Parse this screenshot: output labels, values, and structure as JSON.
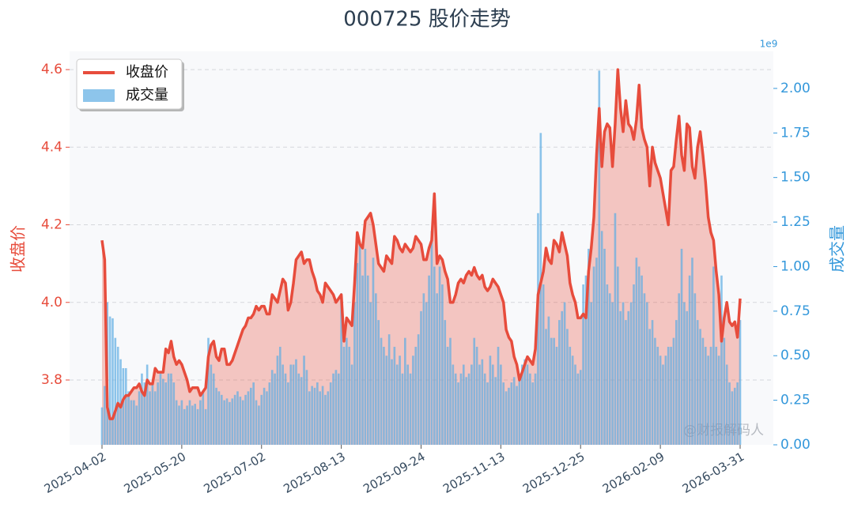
{
  "chart_data": {
    "type": "line",
    "title": "000725 股价走势",
    "ylabel": "收盘价",
    "y2label": "成交量",
    "y2_offset_label": "1e9",
    "watermark": "@财报解码人",
    "legend": "upper left",
    "grid": true,
    "categories": [
      "2025-04-02",
      null,
      null,
      null,
      null,
      null,
      null,
      null,
      null,
      null,
      null,
      null,
      null,
      null,
      null,
      null,
      null,
      null,
      null,
      null,
      null,
      null,
      null,
      null,
      null,
      null,
      null,
      null,
      null,
      null,
      "2025-05-20",
      null,
      null,
      null,
      null,
      null,
      null,
      null,
      null,
      null,
      null,
      null,
      null,
      null,
      null,
      null,
      null,
      null,
      null,
      null,
      null,
      null,
      null,
      null,
      null,
      null,
      null,
      null,
      null,
      null,
      "2025-07-02",
      null,
      null,
      null,
      null,
      null,
      null,
      null,
      null,
      null,
      null,
      null,
      null,
      null,
      null,
      null,
      null,
      null,
      null,
      null,
      null,
      null,
      null,
      null,
      null,
      null,
      null,
      null,
      null,
      null,
      "2025-08-13",
      null,
      null,
      null,
      null,
      null,
      null,
      null,
      null,
      null,
      null,
      null,
      null,
      null,
      null,
      null,
      null,
      null,
      null,
      null,
      null,
      null,
      null,
      null,
      null,
      null,
      null,
      null,
      null,
      null,
      "2025-09-24",
      null,
      null,
      null,
      null,
      null,
      null,
      null,
      null,
      null,
      null,
      null,
      null,
      null,
      null,
      null,
      null,
      null,
      null,
      null,
      null,
      null,
      null,
      null,
      null,
      null,
      null,
      null,
      null,
      null,
      "2025-11-13",
      null,
      null,
      null,
      null,
      null,
      null,
      null,
      null,
      null,
      null,
      null,
      null,
      null,
      null,
      null,
      null,
      null,
      null,
      null,
      null,
      null,
      null,
      null,
      null,
      null,
      null,
      null,
      null,
      null,
      "2025-12-25",
      null,
      null,
      null,
      null,
      null,
      null,
      null,
      null,
      null,
      null,
      null,
      null,
      null,
      null,
      null,
      null,
      null,
      null,
      null,
      null,
      null,
      null,
      null,
      null,
      null,
      null,
      null,
      null,
      null,
      "2026-02-09",
      null,
      null,
      null,
      null,
      null,
      null,
      null,
      null,
      null,
      null,
      null,
      null,
      null,
      null,
      null,
      null,
      null,
      null,
      null,
      null,
      null,
      null,
      null,
      null,
      null,
      null,
      null,
      null,
      null,
      "2026-03-31"
    ],
    "series": [
      {
        "name": "收盘价",
        "type": "area",
        "color": "#e74c3c",
        "values": [
          4.16,
          4.11,
          3.73,
          3.7,
          3.7,
          3.72,
          3.74,
          3.73,
          3.75,
          3.76,
          3.76,
          3.77,
          3.78,
          3.78,
          3.79,
          3.77,
          3.76,
          3.8,
          3.79,
          3.79,
          3.83,
          3.82,
          3.82,
          3.82,
          3.88,
          3.87,
          3.9,
          3.86,
          3.84,
          3.85,
          3.84,
          3.82,
          3.8,
          3.77,
          3.78,
          3.78,
          3.78,
          3.76,
          3.77,
          3.78,
          3.86,
          3.89,
          3.9,
          3.86,
          3.85,
          3.88,
          3.88,
          3.84,
          3.84,
          3.85,
          3.87,
          3.89,
          3.91,
          3.93,
          3.94,
          3.96,
          3.96,
          3.97,
          3.99,
          3.98,
          3.99,
          3.99,
          3.97,
          3.97,
          4.02,
          4.01,
          4.0,
          4.03,
          4.06,
          4.05,
          3.98,
          4.0,
          4.05,
          4.11,
          4.12,
          4.13,
          4.1,
          4.11,
          4.11,
          4.08,
          4.06,
          4.03,
          4.02,
          4.0,
          4.05,
          4.04,
          4.03,
          4.02,
          4.0,
          4.01,
          4.02,
          3.9,
          3.96,
          3.95,
          3.94,
          4.05,
          4.18,
          4.15,
          4.14,
          4.21,
          4.22,
          4.23,
          4.2,
          4.15,
          4.1,
          4.09,
          4.08,
          4.12,
          4.11,
          4.1,
          4.17,
          4.16,
          4.14,
          4.13,
          4.15,
          4.14,
          4.13,
          4.14,
          4.17,
          4.16,
          4.15,
          4.11,
          4.11,
          4.14,
          4.16,
          4.28,
          4.1,
          4.12,
          4.11,
          4.08,
          4.06,
          4.0,
          4.0,
          4.02,
          4.05,
          4.06,
          4.05,
          4.07,
          4.08,
          4.07,
          4.09,
          4.07,
          4.06,
          4.07,
          4.04,
          4.03,
          4.04,
          4.06,
          4.05,
          4.04,
          4.02,
          4.0,
          3.93,
          3.91,
          3.9,
          3.86,
          3.84,
          3.8,
          3.82,
          3.84,
          3.86,
          3.85,
          3.84,
          3.88,
          4.02,
          4.05,
          4.08,
          4.14,
          4.11,
          4.1,
          4.16,
          4.15,
          4.13,
          4.18,
          4.15,
          4.12,
          4.05,
          4.02,
          4.0,
          3.96,
          3.96,
          3.97,
          3.96,
          4.08,
          4.14,
          4.22,
          4.38,
          4.5,
          4.35,
          4.44,
          4.46,
          4.45,
          4.35,
          4.46,
          4.6,
          4.5,
          4.44,
          4.52,
          4.46,
          4.45,
          4.42,
          4.47,
          4.56,
          4.45,
          4.42,
          4.4,
          4.3,
          4.4,
          4.36,
          4.34,
          4.32,
          4.28,
          4.24,
          4.2,
          4.34,
          4.35,
          4.42,
          4.48,
          4.38,
          4.34,
          4.46,
          4.45,
          4.35,
          4.32,
          4.4,
          4.44,
          4.38,
          4.31,
          4.22,
          4.18,
          4.16,
          4.08,
          4.02,
          3.9,
          3.96,
          4.0,
          3.95,
          3.94,
          3.95,
          3.91,
          4.01
        ]
      },
      {
        "name": "成交量",
        "type": "bar",
        "axis": "y2",
        "color": "#5dade2",
        "values": [
          0.21,
          0.33,
          0.8,
          0.72,
          0.71,
          0.6,
          0.55,
          0.48,
          0.43,
          0.43,
          0.3,
          0.25,
          0.25,
          0.22,
          0.3,
          0.4,
          0.35,
          0.45,
          0.3,
          0.35,
          0.3,
          0.35,
          0.4,
          0.37,
          0.35,
          0.4,
          0.4,
          0.35,
          0.25,
          0.22,
          0.25,
          0.2,
          0.22,
          0.25,
          0.22,
          0.23,
          0.2,
          0.25,
          0.3,
          0.2,
          0.6,
          0.45,
          0.4,
          0.32,
          0.3,
          0.28,
          0.25,
          0.26,
          0.24,
          0.26,
          0.28,
          0.3,
          0.27,
          0.25,
          0.28,
          0.3,
          0.32,
          0.35,
          0.25,
          0.22,
          0.28,
          0.32,
          0.3,
          0.35,
          0.42,
          0.4,
          0.5,
          0.55,
          0.45,
          0.4,
          0.35,
          0.45,
          0.45,
          0.48,
          0.4,
          0.38,
          0.5,
          0.42,
          0.3,
          0.33,
          0.32,
          0.35,
          0.3,
          0.33,
          0.28,
          0.3,
          0.35,
          0.4,
          0.42,
          0.4,
          0.85,
          0.55,
          0.6,
          0.55,
          0.45,
          0.8,
          1.02,
          1.13,
          0.95,
          1.1,
          0.95,
          0.8,
          1.05,
          0.85,
          0.7,
          0.6,
          0.55,
          0.5,
          0.62,
          0.48,
          0.55,
          0.45,
          0.5,
          0.4,
          0.6,
          0.45,
          0.4,
          0.5,
          0.55,
          0.62,
          0.75,
          0.85,
          0.8,
          0.95,
          1.2,
          1.0,
          0.85,
          1.0,
          0.9,
          0.7,
          0.55,
          0.6,
          0.45,
          0.4,
          0.35,
          0.4,
          0.45,
          0.38,
          0.4,
          0.45,
          0.6,
          0.55,
          0.45,
          0.48,
          0.4,
          0.35,
          0.5,
          0.45,
          0.38,
          0.55,
          0.45,
          0.35,
          0.3,
          0.32,
          0.35,
          0.38,
          0.33,
          0.4,
          0.45,
          0.48,
          0.45,
          0.4,
          0.35,
          0.4,
          1.3,
          1.75,
          0.9,
          0.65,
          0.72,
          0.6,
          0.6,
          0.55,
          0.7,
          0.75,
          0.8,
          0.65,
          0.55,
          0.5,
          0.45,
          0.4,
          0.42,
          0.9,
          0.95,
          1.1,
          0.8,
          1.0,
          1.05,
          2.1,
          1.2,
          1.1,
          0.9,
          0.85,
          0.8,
          1.3,
          1.0,
          0.75,
          0.8,
          0.7,
          0.75,
          0.8,
          0.9,
          1.05,
          1.0,
          0.95,
          0.85,
          0.8,
          0.65,
          0.7,
          0.6,
          0.55,
          0.5,
          0.45,
          0.5,
          0.55,
          0.55,
          0.6,
          0.7,
          0.85,
          1.1,
          0.8,
          0.75,
          0.95,
          1.05,
          0.85,
          0.7,
          0.65,
          0.6,
          0.55,
          0.5,
          0.55,
          1.0,
          0.55,
          0.5,
          0.95,
          0.6,
          0.45,
          0.35,
          0.3,
          0.32,
          0.35,
          0.7
        ]
      }
    ],
    "ylim": [
      3.633,
      4.647
    ],
    "yticks": [
      3.8,
      {
        "value": 4,
        "label": "4.0"
      },
      4.2,
      4.4,
      4.6
    ],
    "y2lim": [
      0,
      2.208
    ],
    "y2ticks": [
      {
        "value": 0,
        "label": "0.00"
      },
      {
        "value": 0.25,
        "label": "0.25"
      },
      {
        "value": 0.5,
        "label": "0.50"
      },
      {
        "value": 0.75,
        "label": "0.75"
      },
      {
        "value": 1,
        "label": "1.00"
      },
      {
        "value": 1.25,
        "label": "1.25"
      },
      {
        "value": 1.5,
        "label": "1.50"
      },
      {
        "value": 1.75,
        "label": "1.75"
      },
      {
        "value": 2,
        "label": "2.00"
      }
    ]
  }
}
